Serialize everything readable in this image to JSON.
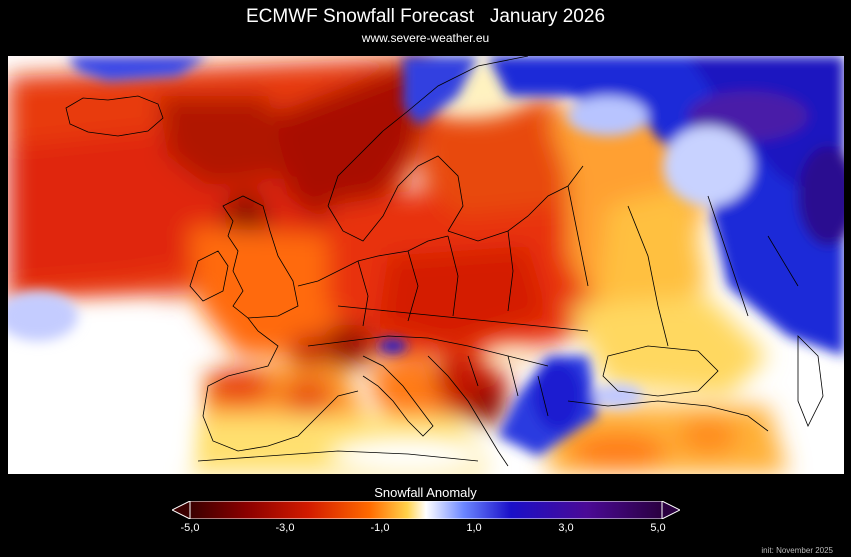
{
  "header": {
    "title": "ECMWF Snowfall Forecast   January 2026",
    "source": "www.severe-weather.eu"
  },
  "legend": {
    "title": "Snowfall Anomaly",
    "ticks": [
      "-5,0",
      "-3,0",
      "-1,0",
      "1,0",
      "3,0",
      "5,0"
    ],
    "range": [
      -5,
      5
    ],
    "colors": [
      "#3a0000",
      "#8b0000",
      "#d21a00",
      "#ff6a00",
      "#ffd24a",
      "#ffffff",
      "#3c5aff",
      "#1a0fc8",
      "#4b0a96",
      "#2a0040"
    ]
  },
  "footer": {
    "init": "init: November 2025"
  }
}
